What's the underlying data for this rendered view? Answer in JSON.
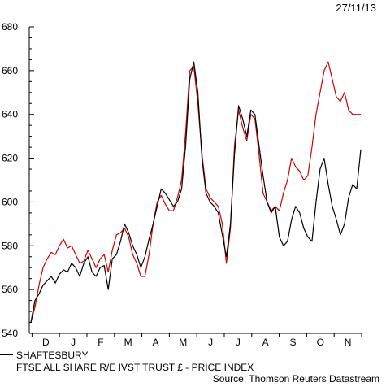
{
  "date_stamp": "27/11/13",
  "source": "Source: Thomson Reuters Datastream",
  "chart_data": {
    "type": "line",
    "title": "",
    "xlabel": "",
    "ylabel": "",
    "ylim": [
      540,
      680
    ],
    "yticks": [
      540,
      560,
      580,
      600,
      620,
      640,
      660,
      680
    ],
    "month_labels": [
      "D",
      "J",
      "F",
      "M",
      "A",
      "M",
      "J",
      "J",
      "A",
      "S",
      "O",
      "N"
    ],
    "grid": false,
    "legend_position": "bottom-left",
    "x_note": "x values are weeks since 27/11/12 (weekly points)",
    "series": [
      {
        "name": "SHAFTESBURY",
        "color": "#000000",
        "values": [
          545,
          555,
          558,
          562,
          564,
          566,
          563,
          567,
          569,
          568,
          572,
          570,
          566,
          572,
          575,
          568,
          566,
          570,
          571,
          560,
          574,
          576,
          582,
          590,
          586,
          580,
          576,
          570,
          575,
          583,
          590,
          598,
          606,
          604,
          601,
          598,
          600,
          606,
          626,
          656,
          664,
          650,
          620,
          604,
          600,
          598,
          595,
          585,
          575,
          590,
          622,
          644,
          638,
          630,
          642,
          640,
          626,
          612,
          600,
          595,
          598,
          584,
          580,
          582,
          592,
          598,
          595,
          588,
          584,
          582,
          600,
          615,
          620,
          608,
          598,
          592,
          585,
          590,
          602,
          608,
          606,
          624
        ]
      },
      {
        "name": "FTSE ALL SHARE R/E IVST TRUST £ - PRICE INDEX",
        "color": "#cc0000",
        "values": [
          545,
          552,
          562,
          570,
          574,
          577,
          576,
          580,
          583,
          579,
          580,
          576,
          572,
          573,
          578,
          574,
          570,
          574,
          576,
          568,
          578,
          585,
          586,
          588,
          584,
          576,
          572,
          566,
          566,
          576,
          590,
          600,
          603,
          599,
          596,
          596,
          602,
          610,
          632,
          660,
          662,
          645,
          622,
          606,
          602,
          600,
          598,
          590,
          572,
          588,
          626,
          642,
          634,
          628,
          640,
          638,
          622,
          604,
          600,
          596,
          598,
          596,
          604,
          610,
          620,
          616,
          614,
          610,
          612,
          625,
          640,
          650,
          660,
          664,
          656,
          648,
          646,
          650,
          642,
          640,
          640,
          640
        ]
      }
    ]
  }
}
